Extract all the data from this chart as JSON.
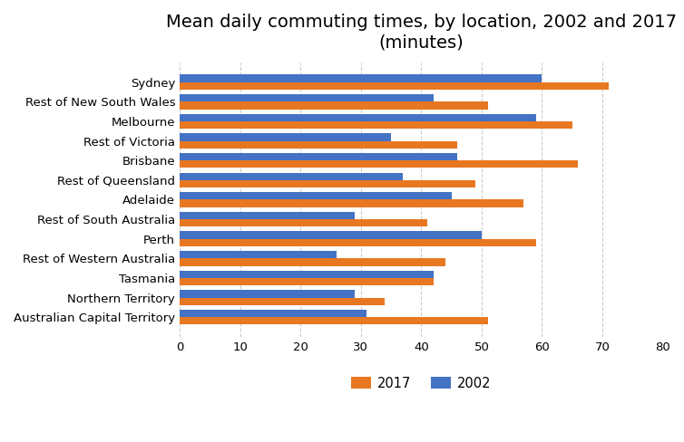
{
  "title": "Mean daily commuting times, by location, 2002 and 2017\n(minutes)",
  "categories": [
    "Sydney",
    "Rest of New South Wales",
    "Melbourne",
    "Rest of Victoria",
    "Brisbane",
    "Rest of Queensland",
    "Adelaide",
    "Rest of South Australia",
    "Perth",
    "Rest of Western Australia",
    "Tasmania",
    "Northern Territory",
    "Australian Capital Territory"
  ],
  "values_2017": [
    71,
    51,
    65,
    46,
    66,
    49,
    57,
    41,
    59,
    44,
    42,
    34,
    51
  ],
  "values_2002": [
    60,
    42,
    59,
    35,
    46,
    37,
    45,
    29,
    50,
    26,
    42,
    29,
    31
  ],
  "color_2017": "#E87722",
  "color_2002": "#4472C4",
  "xlim": [
    0,
    80
  ],
  "xticks": [
    0,
    10,
    20,
    30,
    40,
    50,
    60,
    70,
    80
  ],
  "legend_labels": [
    "2017",
    "2002"
  ],
  "bar_height": 0.38,
  "title_fontsize": 14,
  "tick_fontsize": 9.5,
  "legend_fontsize": 10.5,
  "grid_color": "#cccccc"
}
